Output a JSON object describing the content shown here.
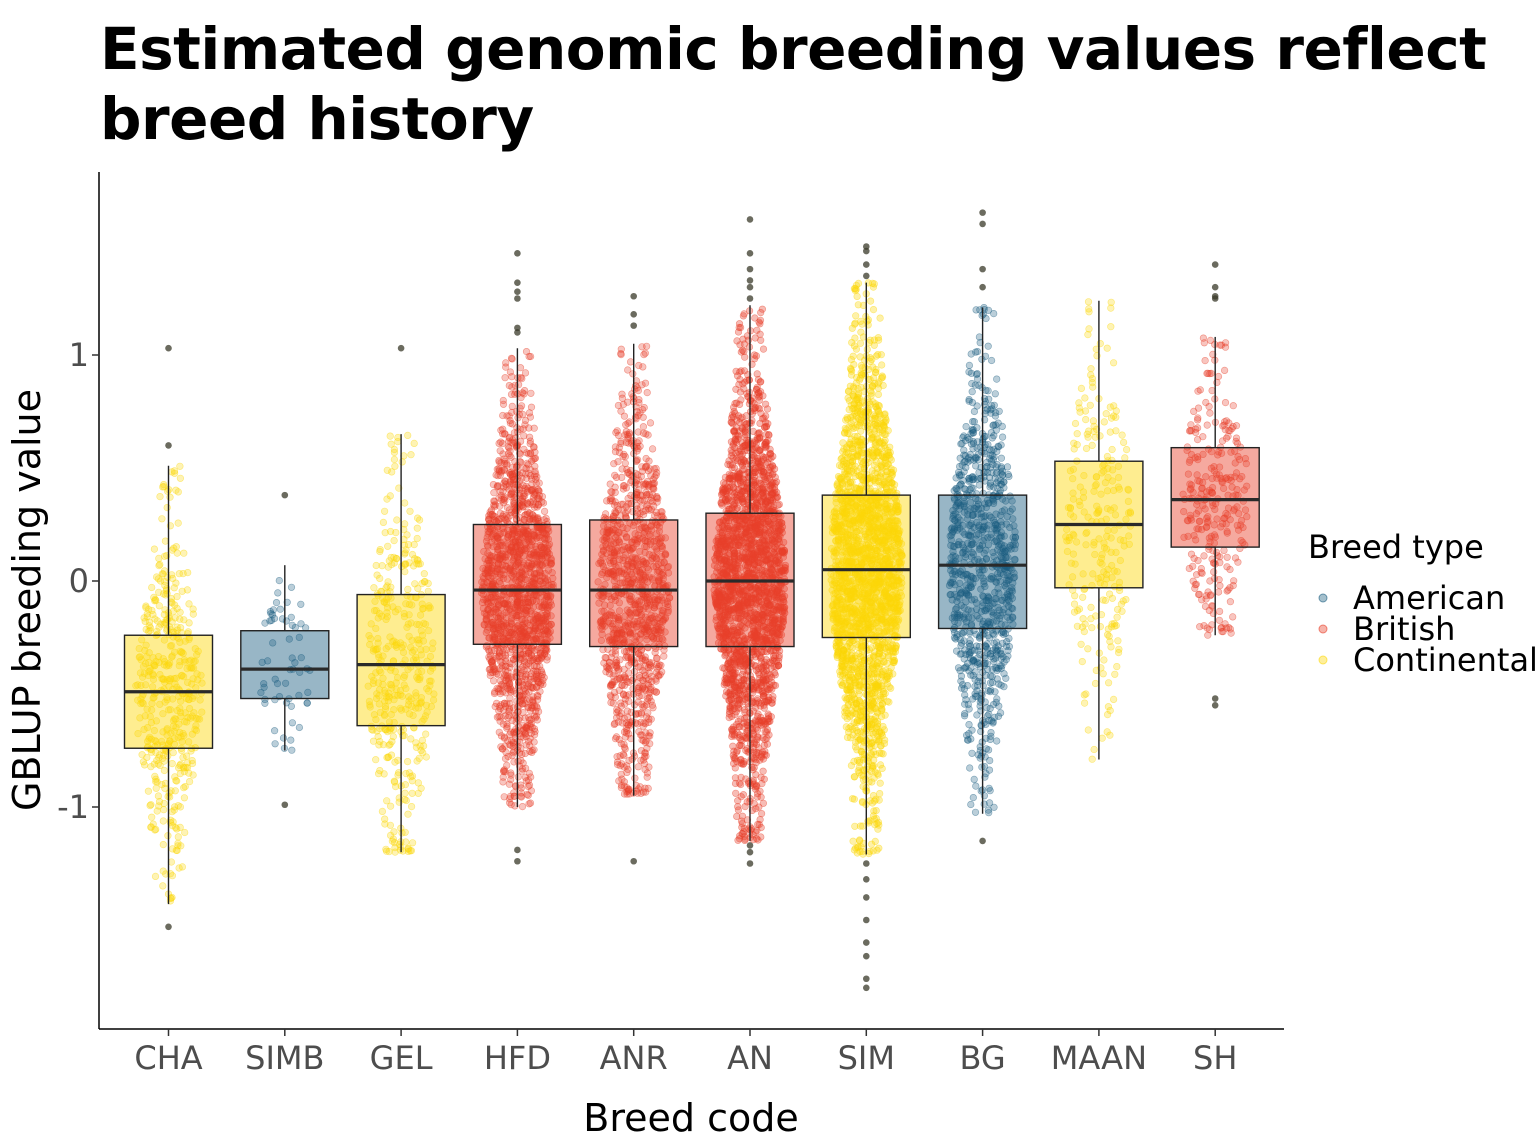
{
  "chart_data": {
    "type": "boxplot",
    "title": "Estimated genomic breeding values reflect breed history",
    "xlabel": "Breed code",
    "ylabel": "GBLUP breeding value",
    "ylim": [
      -1.95,
      1.75
    ],
    "y_ticks": [
      -1,
      0,
      1
    ],
    "y_tick_labels": [
      "-1",
      "0",
      "1"
    ],
    "grid": false,
    "legend": {
      "title": "Breed type",
      "placement": "right",
      "entries": [
        {
          "label": "American",
          "color": "#1b5e80"
        },
        {
          "label": "British",
          "color": "#e8402a"
        },
        {
          "label": "Continental",
          "color": "#fcd808"
        }
      ]
    },
    "colors": {
      "American": "#1b5e80",
      "British": "#e8402a",
      "Continental": "#fcd808"
    },
    "categories": [
      "CHA",
      "SIMB",
      "GEL",
      "HFD",
      "ANR",
      "AN",
      "SIM",
      "BG",
      "MAAN",
      "SH"
    ],
    "boxes": [
      {
        "breed": "CHA",
        "type": "Continental",
        "q1": -0.74,
        "median": -0.49,
        "q3": -0.24,
        "whisker_low": -1.43,
        "whisker_high": 0.51,
        "n_points": 450,
        "outliers": [
          -1.53,
          0.6,
          1.03
        ]
      },
      {
        "breed": "SIMB",
        "type": "American",
        "q1": -0.52,
        "median": -0.39,
        "q3": -0.22,
        "whisker_low": -0.75,
        "whisker_high": 0.07,
        "n_points": 60,
        "outliers": [
          -0.99,
          0.38
        ]
      },
      {
        "breed": "GEL",
        "type": "Continental",
        "q1": -0.64,
        "median": -0.37,
        "q3": -0.06,
        "whisker_low": -1.2,
        "whisker_high": 0.65,
        "n_points": 400,
        "outliers": [
          1.03
        ]
      },
      {
        "breed": "HFD",
        "type": "British",
        "q1": -0.28,
        "median": -0.04,
        "q3": 0.25,
        "whisker_low": -1.0,
        "whisker_high": 1.03,
        "n_points": 1600,
        "outliers": [
          -1.19,
          -1.24,
          1.1,
          1.12,
          1.25,
          1.28,
          1.32,
          1.45
        ]
      },
      {
        "breed": "ANR",
        "type": "British",
        "q1": -0.29,
        "median": -0.04,
        "q3": 0.27,
        "whisker_low": -0.95,
        "whisker_high": 1.05,
        "n_points": 1100,
        "outliers": [
          -1.24,
          1.13,
          1.18,
          1.26
        ]
      },
      {
        "breed": "AN",
        "type": "British",
        "q1": -0.29,
        "median": 0.0,
        "q3": 0.3,
        "whisker_low": -1.15,
        "whisker_high": 1.22,
        "n_points": 5000,
        "outliers": [
          -1.17,
          -1.2,
          -1.25,
          1.25,
          1.3,
          1.33,
          1.38,
          1.45,
          1.6
        ]
      },
      {
        "breed": "SIM",
        "type": "Continental",
        "q1": -0.25,
        "median": 0.05,
        "q3": 0.38,
        "whisker_low": -1.21,
        "whisker_high": 1.32,
        "n_points": 5000,
        "outliers": [
          -1.25,
          -1.32,
          -1.4,
          -1.5,
          -1.6,
          -1.66,
          -1.76,
          -1.8,
          1.35,
          1.4,
          1.46,
          1.48
        ]
      },
      {
        "breed": "BG",
        "type": "American",
        "q1": -0.21,
        "median": 0.07,
        "q3": 0.38,
        "whisker_low": -1.03,
        "whisker_high": 1.21,
        "n_points": 900,
        "outliers": [
          -1.15,
          1.3,
          1.38,
          1.58,
          1.63
        ]
      },
      {
        "breed": "MAAN",
        "type": "Continental",
        "q1": -0.03,
        "median": 0.25,
        "q3": 0.53,
        "whisker_low": -0.79,
        "whisker_high": 1.24,
        "n_points": 250,
        "outliers": []
      },
      {
        "breed": "SH",
        "type": "British",
        "q1": 0.15,
        "median": 0.36,
        "q3": 0.59,
        "whisker_low": -0.24,
        "whisker_high": 1.08,
        "n_points": 280,
        "outliers": [
          -0.52,
          -0.55,
          1.25,
          1.26,
          1.3,
          1.4
        ]
      }
    ]
  }
}
